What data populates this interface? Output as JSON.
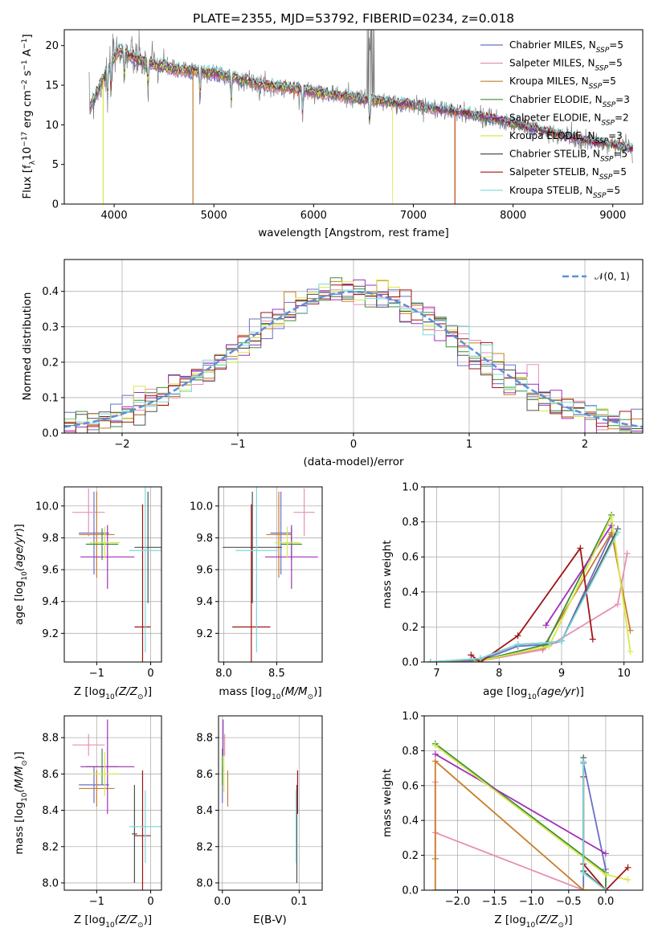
{
  "figure_title": "PLATE=2355, MJD=53792, FIBERID=0234, z=0.018",
  "model_colors": [
    "#6a6fc8",
    "#e88fb5",
    "#c87d2a",
    "#3e8e3e",
    "#a12fb8",
    "#d8e84a",
    "#505050",
    "#a01515",
    "#7ed8d8"
  ],
  "chart_data": [
    {
      "type": "line",
      "name": "spectrum",
      "xlabel": "wavelength [Angstrom, rest frame]",
      "ylabel": "Flux [f_λ10^-17 erg cm^-2 s^-1 A^-1]",
      "xlim": [
        3500,
        9300
      ],
      "ylim": [
        0,
        22
      ],
      "xticks": [
        4000,
        5000,
        6000,
        7000,
        8000,
        9000
      ],
      "yticks": [
        0,
        5,
        10,
        15,
        20
      ],
      "grid": false,
      "legend": "top-right",
      "observed_flux": {
        "x": [
          3750,
          3900,
          4050,
          4250,
          4600,
          5000,
          5500,
          6000,
          6500,
          7000,
          7500,
          8000,
          8500,
          9200
        ],
        "y": [
          12,
          16,
          19.5,
          18,
          17,
          16.5,
          15,
          14.2,
          13.2,
          12.5,
          11.5,
          10.2,
          8.6,
          7
        ]
      },
      "series": [
        {
          "label_main": "Chabrier MILES",
          "label_nssp": "=5"
        },
        {
          "label_main": "Salpeter MILES",
          "label_nssp": "=5"
        },
        {
          "label_main": "Kroupa MILES",
          "label_nssp": "=5"
        },
        {
          "label_main": "Chabrier ELODIE",
          "label_nssp": "=3"
        },
        {
          "label_main": "Salpeter ELODIE",
          "label_nssp": "=2"
        },
        {
          "label_main": "Kroupa ELODIE",
          "label_nssp": "=3"
        },
        {
          "label_main": "Chabrier STELIB",
          "label_nssp": "=5"
        },
        {
          "label_main": "Salpeter STELIB",
          "label_nssp": "=5"
        },
        {
          "label_main": "Kroupa STELIB",
          "label_nssp": "=5"
        }
      ]
    },
    {
      "type": "line",
      "name": "residual-histogram",
      "xlabel": "(data-model)/error",
      "ylabel": "Normed distribution",
      "xlim": [
        -2.5,
        2.5
      ],
      "ylim": [
        0,
        0.49
      ],
      "xticks": [
        -2,
        -1,
        0,
        1,
        2
      ],
      "yticks": [
        0.0,
        0.1,
        0.2,
        0.3,
        0.4
      ],
      "grid": true,
      "legend": "top-right",
      "reference_label": "𝒩(0, 1)",
      "bin_width": 0.1,
      "bin_start": -2.5
    },
    {
      "type": "scatter",
      "name": "age-vs-metallicity",
      "xlabel": "Z [log10(Z/Z⊙)]",
      "ylabel": "age  [log10(age/yr)]",
      "xlim": [
        -1.6,
        0.2
      ],
      "ylim": [
        9.02,
        10.12
      ],
      "xticks": [
        -1,
        0
      ],
      "yticks": [
        9.2,
        9.4,
        9.6,
        9.8,
        10.0
      ],
      "grid": true,
      "points": [
        {
          "x": -1.05,
          "xerr": 0.28,
          "y": 9.83,
          "yerr": 0.26
        },
        {
          "x": -1.15,
          "xerr": 0.3,
          "y": 9.96,
          "yerr": 0.15
        },
        {
          "x": -1.0,
          "xerr": 0.33,
          "y": 9.82,
          "yerr": 0.27
        },
        {
          "x": -0.9,
          "xerr": 0.3,
          "y": 9.76,
          "yerr": 0.1
        },
        {
          "x": -0.8,
          "xerr": 0.5,
          "y": 9.68,
          "yerr": 0.2
        },
        {
          "x": -0.85,
          "xerr": 0.28,
          "y": 9.77,
          "yerr": 0.1
        },
        {
          "x": -0.05,
          "xerr": 0.25,
          "y": 9.74,
          "yerr": 0.35
        },
        {
          "x": -0.15,
          "xerr": 0.15,
          "y": 9.24,
          "yerr": 0.77
        },
        {
          "x": -0.1,
          "xerr": 0.3,
          "y": 9.72,
          "yerr": 0.64
        }
      ]
    },
    {
      "type": "scatter",
      "name": "age-vs-mass",
      "xlabel": "mass [log10(M/M⊙)]",
      "ylabel": "",
      "xlim": [
        7.95,
        8.93
      ],
      "ylim": [
        9.02,
        10.12
      ],
      "xticks": [
        8.0,
        8.5
      ],
      "yticks": [
        9.2,
        9.4,
        9.6,
        9.8,
        10.0
      ],
      "grid": true,
      "points": [
        {
          "x": 8.54,
          "xerr": 0.1,
          "y": 9.83,
          "yerr": 0.26
        },
        {
          "x": 8.76,
          "xerr": 0.1,
          "y": 9.96,
          "yerr": 0.15
        },
        {
          "x": 8.52,
          "xerr": 0.12,
          "y": 9.82,
          "yerr": 0.27
        },
        {
          "x": 8.64,
          "xerr": 0.1,
          "y": 9.76,
          "yerr": 0.1
        },
        {
          "x": 8.64,
          "xerr": 0.25,
          "y": 9.68,
          "yerr": 0.2
        },
        {
          "x": 8.6,
          "xerr": 0.12,
          "y": 9.77,
          "yerr": 0.1
        },
        {
          "x": 8.27,
          "xerr": 0.28,
          "y": 9.74,
          "yerr": 0.35
        },
        {
          "x": 8.26,
          "xerr": 0.18,
          "y": 9.24,
          "yerr": 0.77
        },
        {
          "x": 8.31,
          "xerr": 0.2,
          "y": 9.72,
          "yerr": 0.64
        }
      ]
    },
    {
      "type": "line",
      "name": "mass-weight-vs-age",
      "xlabel": "age  [log10(age/yr)]",
      "ylabel": "mass weight",
      "xlim": [
        6.8,
        10.3
      ],
      "ylim": [
        0.0,
        1.0
      ],
      "xticks": [
        7,
        8,
        9,
        10
      ],
      "yticks": [
        0.0,
        0.2,
        0.4,
        0.6,
        0.8,
        1.0
      ],
      "grid": true,
      "series": [
        {
          "x": [
            6.9,
            7.7,
            8.3,
            8.8,
            9.0,
            9.8
          ],
          "y": [
            0.0,
            0.01,
            0.09,
            0.1,
            0.12,
            0.73
          ]
        },
        {
          "x": [
            6.9,
            7.6,
            8.7,
            9.9,
            10.05
          ],
          "y": [
            0.0,
            0.0,
            0.07,
            0.33,
            0.62
          ]
        },
        {
          "x": [
            6.9,
            7.6,
            8.7,
            9.8,
            10.1
          ],
          "y": [
            0.0,
            0.0,
            0.08,
            0.74,
            0.18
          ]
        },
        {
          "x": [
            7.6,
            8.75,
            9.8
          ],
          "y": [
            0.0,
            0.1,
            0.84
          ]
        },
        {
          "x": [
            8.75,
            9.8
          ],
          "y": [
            0.21,
            0.78
          ]
        },
        {
          "x": [
            7.6,
            8.8,
            9.8,
            10.1
          ],
          "y": [
            0.0,
            0.09,
            0.83,
            0.06
          ]
        },
        {
          "x": [
            6.9,
            7.7,
            8.3,
            8.8,
            9.0,
            9.9
          ],
          "y": [
            0.0,
            0.02,
            0.1,
            0.11,
            0.12,
            0.76
          ]
        },
        {
          "x": [
            7.55,
            7.7,
            8.3,
            9.3,
            9.5
          ],
          "y": [
            0.04,
            0.0,
            0.15,
            0.65,
            0.13
          ]
        },
        {
          "x": [
            6.9,
            7.7,
            8.3,
            8.8,
            9.0,
            9.9
          ],
          "y": [
            0.0,
            0.02,
            0.1,
            0.11,
            0.12,
            0.74
          ]
        }
      ]
    },
    {
      "type": "scatter",
      "name": "mass-vs-metallicity",
      "xlabel": "Z [log10(Z/Z⊙)]",
      "ylabel": "mass [log10(M/M⊙)]",
      "xlim": [
        -1.6,
        0.2
      ],
      "ylim": [
        7.96,
        8.92
      ],
      "xticks": [
        -1,
        0
      ],
      "yticks": [
        8.0,
        8.2,
        8.4,
        8.6,
        8.8
      ],
      "grid": true,
      "points": [
        {
          "x": -1.05,
          "xerr": 0.28,
          "y": 8.54,
          "yerr": 0.1
        },
        {
          "x": -1.15,
          "xerr": 0.3,
          "y": 8.76,
          "yerr": 0.06
        },
        {
          "x": -1.0,
          "xerr": 0.33,
          "y": 8.52,
          "yerr": 0.1
        },
        {
          "x": -0.9,
          "xerr": 0.3,
          "y": 8.64,
          "yerr": 0.1
        },
        {
          "x": -0.8,
          "xerr": 0.5,
          "y": 8.64,
          "yerr": 0.26
        },
        {
          "x": -0.85,
          "xerr": 0.28,
          "y": 8.6,
          "yerr": 0.12
        },
        {
          "x": -0.3,
          "xerr": 0.05,
          "y": 8.27,
          "yerr": 0.27
        },
        {
          "x": -0.15,
          "xerr": 0.15,
          "y": 8.26,
          "yerr": 0.36
        },
        {
          "x": -0.1,
          "xerr": 0.3,
          "y": 8.31,
          "yerr": 0.2
        }
      ]
    },
    {
      "type": "scatter",
      "name": "mass-vs-extinction",
      "xlabel": "E(B-V)",
      "ylabel": "",
      "xlim": [
        -0.005,
        0.13
      ],
      "ylim": [
        7.96,
        8.92
      ],
      "xticks": [
        0.0,
        0.1
      ],
      "yticks": [
        8.0,
        8.2,
        8.4,
        8.6,
        8.8
      ],
      "grid": true,
      "points": [
        {
          "x": 0.0,
          "xerr": 0.0,
          "y": 8.54,
          "yerr": 0.1
        },
        {
          "x": 0.003,
          "xerr": 0.0,
          "y": 8.76,
          "yerr": 0.06
        },
        {
          "x": 0.007,
          "xerr": 0.0,
          "y": 8.52,
          "yerr": 0.1
        },
        {
          "x": 0.0,
          "xerr": 0.0,
          "y": 8.64,
          "yerr": 0.1
        },
        {
          "x": 0.001,
          "xerr": 0.0,
          "y": 8.8,
          "yerr": 0.1
        },
        {
          "x": 0.002,
          "xerr": 0.0,
          "y": 8.6,
          "yerr": 0.1
        },
        {
          "x": 0.097,
          "xerr": 0.0,
          "y": 8.27,
          "yerr": 0.27
        },
        {
          "x": 0.098,
          "xerr": 0.0,
          "y": 8.5,
          "yerr": 0.12
        },
        {
          "x": 0.096,
          "xerr": 0.0,
          "y": 8.31,
          "yerr": 0.2
        }
      ]
    },
    {
      "type": "line",
      "name": "mass-weight-vs-metallicity",
      "xlabel": "Z [log10(Z/Z⊙)]",
      "ylabel": "mass weight",
      "xlim": [
        -2.45,
        0.5
      ],
      "ylim": [
        0.0,
        1.0
      ],
      "xticks": [
        -2.0,
        -1.5,
        -1.0,
        -0.5,
        0.0
      ],
      "yticks": [
        0.0,
        0.2,
        0.4,
        0.6,
        0.8,
        1.0
      ],
      "grid": true,
      "series": [
        {
          "x": [
            -2.3,
            -0.3,
            -0.3,
            0.0,
            0.0
          ],
          "y": [
            0.0,
            0.0,
            0.73,
            0.12,
            0.0
          ]
        },
        {
          "x": [
            -2.3,
            -2.3,
            -2.3,
            -0.3,
            0.0
          ],
          "y": [
            0.62,
            0.18,
            0.33,
            0.0,
            0.0
          ]
        },
        {
          "x": [
            -2.3,
            -2.3,
            -2.3,
            -0.3,
            0.0
          ],
          "y": [
            0.0,
            0.18,
            0.74,
            0.0,
            0.0
          ]
        },
        {
          "x": [
            -2.3,
            0.0,
            0.0
          ],
          "y": [
            0.84,
            0.1,
            0.0
          ]
        },
        {
          "x": [
            -2.3,
            0.0
          ],
          "y": [
            0.78,
            0.21
          ]
        },
        {
          "x": [
            -2.3,
            0.0,
            0.3
          ],
          "y": [
            0.83,
            0.09,
            0.06
          ]
        },
        {
          "x": [
            -0.3,
            -0.3,
            0.0
          ],
          "y": [
            0.76,
            0.11,
            0.0
          ]
        },
        {
          "x": [
            -0.3,
            -0.3,
            0.0,
            0.3
          ],
          "y": [
            0.65,
            0.15,
            0.0,
            0.13
          ]
        },
        {
          "x": [
            -0.3,
            -0.3,
            0.0
          ],
          "y": [
            0.74,
            0.1,
            0.0
          ]
        }
      ]
    }
  ]
}
